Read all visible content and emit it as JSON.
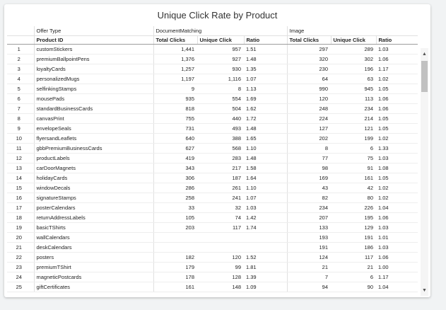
{
  "title": "Unique Click Rate by Product",
  "header": {
    "group_offer_type": "Offer Type",
    "group_document_matching": "DocumentMatching",
    "group_image": "Image",
    "col_product_id": "Product ID",
    "col_dm_total": "Total Clicks",
    "col_dm_unique": "Unique Click",
    "col_dm_ratio": "Ratio",
    "col_img_total": "Total Clicks",
    "col_img_unique": "Unique Click",
    "col_img_ratio": "Ratio"
  },
  "icons": {
    "scroll_up": "▲",
    "scroll_down": "▼"
  },
  "rows": [
    {
      "n": "1",
      "pid": "customStickers",
      "dm_total": "1,441",
      "dm_unique": "957",
      "dm_ratio": "1.51",
      "img_total": "297",
      "img_unique": "289",
      "img_ratio": "1.03"
    },
    {
      "n": "2",
      "pid": "premiumBallpointPens",
      "dm_total": "1,376",
      "dm_unique": "927",
      "dm_ratio": "1.48",
      "img_total": "320",
      "img_unique": "302",
      "img_ratio": "1.06"
    },
    {
      "n": "3",
      "pid": "loyaltyCards",
      "dm_total": "1,257",
      "dm_unique": "930",
      "dm_ratio": "1.35",
      "img_total": "230",
      "img_unique": "196",
      "img_ratio": "1.17"
    },
    {
      "n": "4",
      "pid": "personalizedMugs",
      "dm_total": "1,197",
      "dm_unique": "1,116",
      "dm_ratio": "1.07",
      "img_total": "64",
      "img_unique": "63",
      "img_ratio": "1.02"
    },
    {
      "n": "5",
      "pid": "selfinkingStamps",
      "dm_total": "9",
      "dm_unique": "8",
      "dm_ratio": "1.13",
      "img_total": "990",
      "img_unique": "945",
      "img_ratio": "1.05"
    },
    {
      "n": "6",
      "pid": "mousePads",
      "dm_total": "935",
      "dm_unique": "554",
      "dm_ratio": "1.69",
      "img_total": "120",
      "img_unique": "113",
      "img_ratio": "1.06"
    },
    {
      "n": "7",
      "pid": "standardBusinessCards",
      "dm_total": "818",
      "dm_unique": "504",
      "dm_ratio": "1.62",
      "img_total": "248",
      "img_unique": "234",
      "img_ratio": "1.06"
    },
    {
      "n": "8",
      "pid": "canvasPrint",
      "dm_total": "755",
      "dm_unique": "440",
      "dm_ratio": "1.72",
      "img_total": "224",
      "img_unique": "214",
      "img_ratio": "1.05"
    },
    {
      "n": "9",
      "pid": "envelopeSeals",
      "dm_total": "731",
      "dm_unique": "493",
      "dm_ratio": "1.48",
      "img_total": "127",
      "img_unique": "121",
      "img_ratio": "1.05"
    },
    {
      "n": "10",
      "pid": "flyersandLeaflets",
      "dm_total": "640",
      "dm_unique": "388",
      "dm_ratio": "1.65",
      "img_total": "202",
      "img_unique": "199",
      "img_ratio": "1.02"
    },
    {
      "n": "11",
      "pid": "gbbPremiumBusinessCards",
      "dm_total": "627",
      "dm_unique": "568",
      "dm_ratio": "1.10",
      "img_total": "8",
      "img_unique": "6",
      "img_ratio": "1.33"
    },
    {
      "n": "12",
      "pid": "productLabels",
      "dm_total": "419",
      "dm_unique": "283",
      "dm_ratio": "1.48",
      "img_total": "77",
      "img_unique": "75",
      "img_ratio": "1.03"
    },
    {
      "n": "13",
      "pid": "carDoorMagnets",
      "dm_total": "343",
      "dm_unique": "217",
      "dm_ratio": "1.58",
      "img_total": "98",
      "img_unique": "91",
      "img_ratio": "1.08"
    },
    {
      "n": "14",
      "pid": "holidayCards",
      "dm_total": "306",
      "dm_unique": "187",
      "dm_ratio": "1.64",
      "img_total": "169",
      "img_unique": "161",
      "img_ratio": "1.05"
    },
    {
      "n": "15",
      "pid": "windowDecals",
      "dm_total": "286",
      "dm_unique": "261",
      "dm_ratio": "1.10",
      "img_total": "43",
      "img_unique": "42",
      "img_ratio": "1.02"
    },
    {
      "n": "16",
      "pid": "signatureStamps",
      "dm_total": "258",
      "dm_unique": "241",
      "dm_ratio": "1.07",
      "img_total": "82",
      "img_unique": "80",
      "img_ratio": "1.02"
    },
    {
      "n": "17",
      "pid": "posterCalendars",
      "dm_total": "33",
      "dm_unique": "32",
      "dm_ratio": "1.03",
      "img_total": "234",
      "img_unique": "226",
      "img_ratio": "1.04"
    },
    {
      "n": "18",
      "pid": "returnAddressLabels",
      "dm_total": "105",
      "dm_unique": "74",
      "dm_ratio": "1.42",
      "img_total": "207",
      "img_unique": "195",
      "img_ratio": "1.06"
    },
    {
      "n": "19",
      "pid": "basicTShirts",
      "dm_total": "203",
      "dm_unique": "117",
      "dm_ratio": "1.74",
      "img_total": "133",
      "img_unique": "129",
      "img_ratio": "1.03"
    },
    {
      "n": "20",
      "pid": "wallCalendars",
      "dm_total": "",
      "dm_unique": "",
      "dm_ratio": "",
      "img_total": "193",
      "img_unique": "191",
      "img_ratio": "1.01"
    },
    {
      "n": "21",
      "pid": "deskCalendars",
      "dm_total": "",
      "dm_unique": "",
      "dm_ratio": "",
      "img_total": "191",
      "img_unique": "186",
      "img_ratio": "1.03"
    },
    {
      "n": "22",
      "pid": "posters",
      "dm_total": "182",
      "dm_unique": "120",
      "dm_ratio": "1.52",
      "img_total": "124",
      "img_unique": "117",
      "img_ratio": "1.06"
    },
    {
      "n": "23",
      "pid": "premiumTShirt",
      "dm_total": "179",
      "dm_unique": "99",
      "dm_ratio": "1.81",
      "img_total": "21",
      "img_unique": "21",
      "img_ratio": "1.00"
    },
    {
      "n": "24",
      "pid": "magneticPostcards",
      "dm_total": "178",
      "dm_unique": "128",
      "dm_ratio": "1.39",
      "img_total": "7",
      "img_unique": "6",
      "img_ratio": "1.17"
    },
    {
      "n": "25",
      "pid": "giftCertificates",
      "dm_total": "161",
      "dm_unique": "148",
      "dm_ratio": "1.09",
      "img_total": "94",
      "img_unique": "90",
      "img_ratio": "1.04"
    }
  ]
}
